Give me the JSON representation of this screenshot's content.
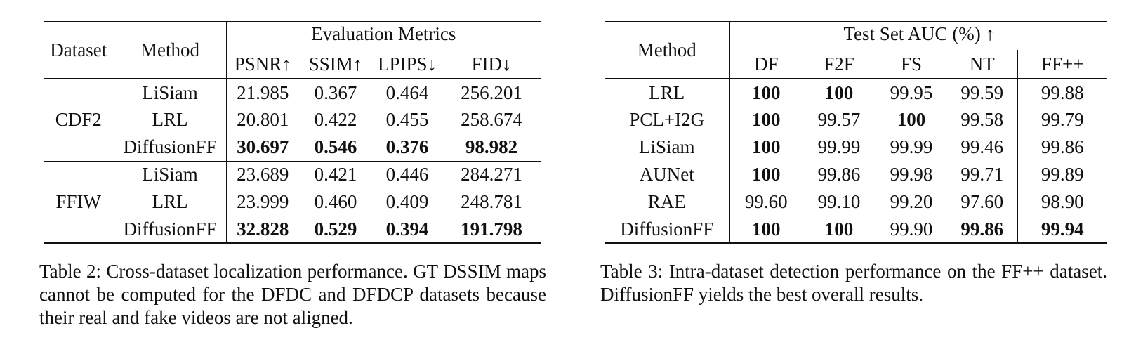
{
  "table2": {
    "col_dataset": "Dataset",
    "col_method": "Method",
    "group_header": "Evaluation Metrics",
    "metrics": [
      "PSNR↑",
      "SSIM↑",
      "LPIPS↓",
      "FID↓"
    ],
    "groups": [
      {
        "dataset": "CDF2",
        "rows": [
          {
            "method": "LiSiam",
            "values": [
              "21.985",
              "0.367",
              "0.464",
              "256.201"
            ]
          },
          {
            "method": "LRL",
            "values": [
              "20.801",
              "0.422",
              "0.455",
              "258.674"
            ]
          },
          {
            "method": "DiffusionFF",
            "values": [
              "30.697",
              "0.546",
              "0.376",
              "98.982"
            ]
          }
        ]
      },
      {
        "dataset": "FFIW",
        "rows": [
          {
            "method": "LiSiam",
            "values": [
              "23.689",
              "0.421",
              "0.446",
              "284.271"
            ]
          },
          {
            "method": "LRL",
            "values": [
              "23.999",
              "0.460",
              "0.409",
              "248.781"
            ]
          },
          {
            "method": "DiffusionFF",
            "values": [
              "32.828",
              "0.529",
              "0.394",
              "191.798"
            ]
          }
        ]
      }
    ],
    "caption": "Table 2: Cross-dataset localization performance. GT DSSIM maps cannot be computed for the DFDC and DFDCP datasets because their real and fake videos are not aligned."
  },
  "table3": {
    "col_method": "Method",
    "group_header": "Test Set AUC (%) ↑",
    "columns": [
      "DF",
      "F2F",
      "FS",
      "NT",
      "FF++"
    ],
    "rows": [
      {
        "method": "LRL",
        "values": [
          "100",
          "100",
          "99.95",
          "99.59",
          "99.88"
        ]
      },
      {
        "method": "PCL+I2G",
        "values": [
          "100",
          "99.57",
          "100",
          "99.58",
          "99.79"
        ]
      },
      {
        "method": "LiSiam",
        "values": [
          "100",
          "99.99",
          "99.99",
          "99.46",
          "99.86"
        ]
      },
      {
        "method": "AUNet",
        "values": [
          "100",
          "99.86",
          "99.98",
          "99.71",
          "99.89"
        ]
      },
      {
        "method": "RAE",
        "values": [
          "99.60",
          "99.10",
          "99.20",
          "97.60",
          "98.90"
        ]
      },
      {
        "method": "DiffusionFF",
        "values": [
          "100",
          "100",
          "99.90",
          "99.86",
          "99.94"
        ]
      }
    ],
    "caption": "Table 3: Intra-dataset detection performance on the FF++ dataset. DiffusionFF yields the best overall results."
  }
}
